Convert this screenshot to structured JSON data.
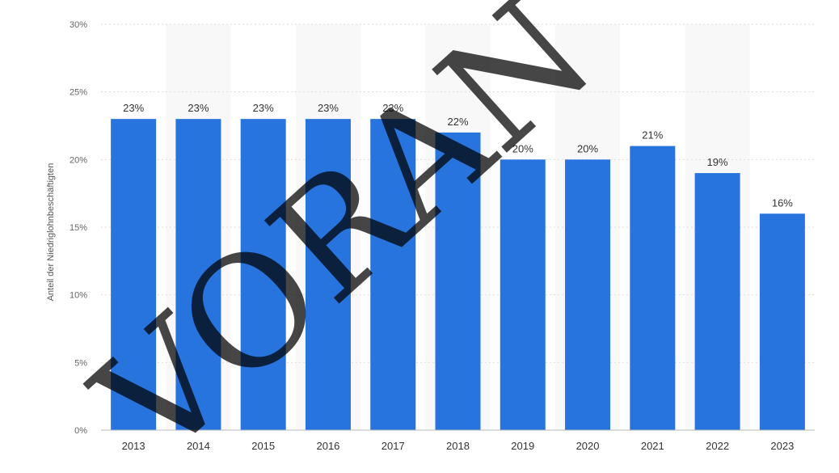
{
  "chart_data": {
    "type": "bar",
    "categories": [
      "2013",
      "2014",
      "2015",
      "2016",
      "2017",
      "2018",
      "2019",
      "2020",
      "2021",
      "2022",
      "2023"
    ],
    "values": [
      23,
      23,
      23,
      23,
      23,
      22,
      20,
      20,
      21,
      19,
      16
    ],
    "value_labels": [
      "23%",
      "23%",
      "23%",
      "23%",
      "23%",
      "22%",
      "20%",
      "20%",
      "21%",
      "19%",
      "16%"
    ],
    "ylabel": "Anteil der Niedriglohnbeschäftigten",
    "ylim": [
      0,
      30
    ],
    "yticks": [
      0,
      5,
      10,
      15,
      20,
      25,
      30
    ],
    "ytick_labels": [
      "0%",
      "5%",
      "10%",
      "15%",
      "20%",
      "25%",
      "30%"
    ],
    "grid": true,
    "legend": "none",
    "colors": {
      "bar": "#2874de",
      "band": "#f8f8f8",
      "grid": "#dddddd"
    }
  },
  "watermark": {
    "text": "VORAN"
  }
}
